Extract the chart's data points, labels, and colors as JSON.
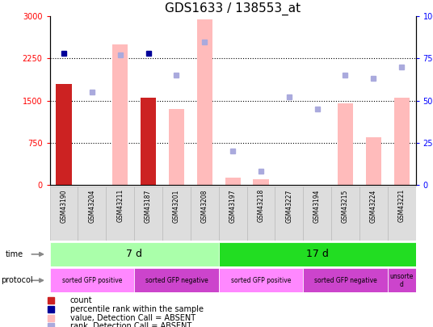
{
  "title": "GDS1633 / 138553_at",
  "samples": [
    "GSM43190",
    "GSM43204",
    "GSM43211",
    "GSM43187",
    "GSM43201",
    "GSM43208",
    "GSM43197",
    "GSM43218",
    "GSM43227",
    "GSM43194",
    "GSM43215",
    "GSM43224",
    "GSM43221"
  ],
  "bar_values": [
    1800,
    null,
    2500,
    1550,
    1350,
    2950,
    120,
    100,
    null,
    null,
    1450,
    850,
    1550
  ],
  "bar_colors": [
    "#cc2222",
    "#cc2222",
    "#ffbbbb",
    "#cc2222",
    "#ffbbbb",
    "#ffbbbb",
    "#ffbbbb",
    "#ffbbbb",
    "#ffbbbb",
    "#ffbbbb",
    "#ffbbbb",
    "#ffbbbb",
    "#ffbbbb"
  ],
  "rank_values": [
    78,
    55,
    77,
    78,
    65,
    85,
    20,
    8,
    52,
    45,
    65,
    63,
    70
  ],
  "rank_absent": [
    false,
    true,
    true,
    false,
    true,
    true,
    true,
    true,
    true,
    true,
    true,
    true,
    true
  ],
  "rank_color_present": "#000099",
  "rank_color_absent": "#aaaadd",
  "ylim_left": [
    0,
    3000
  ],
  "ylim_right": [
    0,
    100
  ],
  "yticks_left": [
    0,
    750,
    1500,
    2250,
    3000
  ],
  "yticks_right": [
    0,
    25,
    50,
    75,
    100
  ],
  "ytick_labels_right": [
    "0",
    "25",
    "50",
    "75",
    "100%"
  ],
  "gridlines": [
    750,
    1500,
    2250
  ],
  "time_groups": [
    {
      "label": "7 d",
      "start": 0,
      "end": 6,
      "color": "#aaffaa"
    },
    {
      "label": "17 d",
      "start": 6,
      "end": 13,
      "color": "#22dd22"
    }
  ],
  "protocol_groups": [
    {
      "label": "sorted GFP positive",
      "start": 0,
      "end": 3,
      "color": "#ff88ff"
    },
    {
      "label": "sorted GFP negative",
      "start": 3,
      "end": 6,
      "color": "#cc44cc"
    },
    {
      "label": "sorted GFP positive",
      "start": 6,
      "end": 9,
      "color": "#ff88ff"
    },
    {
      "label": "sorted GFP negative",
      "start": 9,
      "end": 12,
      "color": "#cc44cc"
    },
    {
      "label": "unsorte\nd",
      "start": 12,
      "end": 13,
      "color": "#cc44cc"
    }
  ],
  "legend_items": [
    {
      "label": "count",
      "color": "#cc2222"
    },
    {
      "label": "percentile rank within the sample",
      "color": "#000099"
    },
    {
      "label": "value, Detection Call = ABSENT",
      "color": "#ffbbbb"
    },
    {
      "label": "rank, Detection Call = ABSENT",
      "color": "#aaaadd"
    }
  ],
  "title_fontsize": 11,
  "tick_fontsize": 7,
  "bar_width": 0.55
}
